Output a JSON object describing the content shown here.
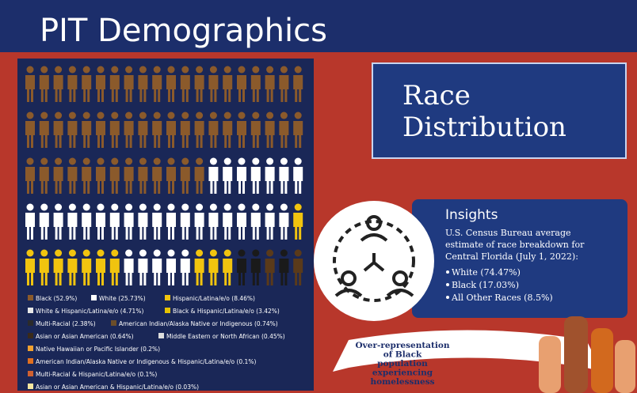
{
  "header": {
    "title": "PIT Demographics"
  },
  "panel": {
    "title_lines": [
      "Race",
      "Distribution"
    ]
  },
  "legend": [
    {
      "label": "Black (52.9%)",
      "color": "#8b5a2b"
    },
    {
      "label": "White (25.73%)",
      "color": "#ffffff"
    },
    {
      "label": "Hispanic/Latina/e/o (8.46%)",
      "color": "#f1c40f"
    },
    {
      "label": "White & Hispanic/Latina/e/o (4.71%)",
      "color": "#e8e8e8"
    },
    {
      "label": "Black & Hispanic/Latina/e/o (3.42%)",
      "color": "#e6c200"
    },
    {
      "label": "Multi-Racial (2.38%)",
      "color": "#2b2b2b"
    },
    {
      "label": "American Indian/Alaska Native or Indigenous (0.74%)",
      "color": "#6b4e2a"
    },
    {
      "label": "Asian or Asian American (0.64%)",
      "color": "#3a2a1a"
    },
    {
      "label": "Middle Eastern or North African (0.45%)",
      "color": "#dddddd"
    },
    {
      "label": "Native Hawaiian or Pacific Islander (0.2%)",
      "color": "#f0a030"
    },
    {
      "label": "American Indian/Alaska Native or Indigenous & Hispanic/Latina/e/o (0.1%)",
      "color": "#e07020"
    },
    {
      "label": "Multi-Racial & Hispanic/Latina/e/o (0.1%)",
      "color": "#d06030"
    },
    {
      "label": "Asian or Asian American & Hispanic/Latina/e/o (0.03%)",
      "color": "#f5e6a0"
    }
  ],
  "insights": {
    "title": "Insights",
    "text_lines": [
      "U.S. Census Bureau average",
      "estimate of race breakdown for",
      "Central Florida (July 1, 2022):"
    ],
    "bullets": [
      "White (74.47%)",
      "Black (17.03%)",
      "All Other Races (8.5%)"
    ]
  },
  "callout": {
    "lines": [
      "Over-representation",
      "of Black",
      "population",
      "experiencing",
      "homelessness"
    ]
  }
}
